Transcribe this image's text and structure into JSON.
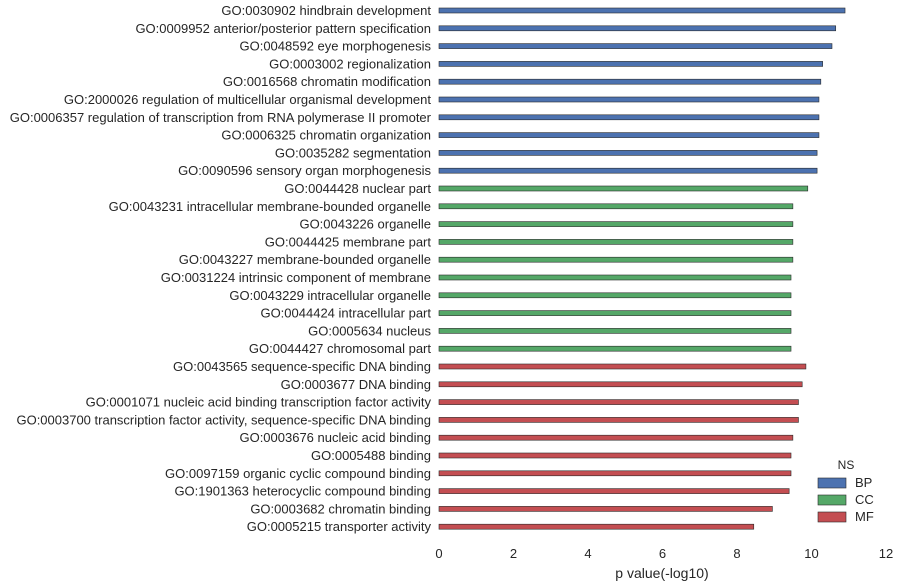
{
  "chart_data": {
    "type": "bar",
    "orientation": "horizontal",
    "xlabel": "p value(-log10)",
    "xlim": [
      0,
      12
    ],
    "x_ticks": [
      "0",
      "2",
      "4",
      "6",
      "8",
      "10",
      "12"
    ],
    "grid": false,
    "legend": {
      "title": "NS",
      "placement": "bottom-right",
      "entries": [
        {
          "name": "BP",
          "color": "#4c72b0"
        },
        {
          "name": "CC",
          "color": "#55a868"
        },
        {
          "name": "MF",
          "color": "#c44e52"
        }
      ]
    },
    "series": [
      {
        "name": "BP",
        "color": "#4c72b0",
        "points": [
          {
            "category": "GO:0030902 hindbrain development",
            "value": 10.9
          },
          {
            "category": "GO:0009952 anterior/posterior pattern specification",
            "value": 10.65
          },
          {
            "category": "GO:0048592 eye morphogenesis",
            "value": 10.55
          },
          {
            "category": "GO:0003002 regionalization",
            "value": 10.3
          },
          {
            "category": "GO:0016568 chromatin modification",
            "value": 10.25
          },
          {
            "category": "GO:2000026 regulation of multicellular organismal development",
            "value": 10.2
          },
          {
            "category": "GO:0006357 regulation of transcription from RNA polymerase II promoter",
            "value": 10.2
          },
          {
            "category": "GO:0006325 chromatin organization",
            "value": 10.2
          },
          {
            "category": "GO:0035282 segmentation",
            "value": 10.15
          },
          {
            "category": "GO:0090596 sensory organ morphogenesis",
            "value": 10.15
          }
        ]
      },
      {
        "name": "CC",
        "color": "#55a868",
        "points": [
          {
            "category": "GO:0044428 nuclear part",
            "value": 9.9
          },
          {
            "category": "GO:0043231 intracellular membrane-bounded organelle",
            "value": 9.5
          },
          {
            "category": "GO:0043226 organelle",
            "value": 9.5
          },
          {
            "category": "GO:0044425 membrane part",
            "value": 9.5
          },
          {
            "category": "GO:0043227 membrane-bounded organelle",
            "value": 9.5
          },
          {
            "category": "GO:0031224 intrinsic component of membrane",
            "value": 9.45
          },
          {
            "category": "GO:0043229 intracellular organelle",
            "value": 9.45
          },
          {
            "category": "GO:0044424 intracellular part",
            "value": 9.45
          },
          {
            "category": "GO:0005634 nucleus",
            "value": 9.45
          },
          {
            "category": "GO:0044427 chromosomal part",
            "value": 9.45
          }
        ]
      },
      {
        "name": "MF",
        "color": "#c44e52",
        "points": [
          {
            "category": "GO:0043565 sequence-specific DNA binding",
            "value": 9.85
          },
          {
            "category": "GO:0003677 DNA binding",
            "value": 9.75
          },
          {
            "category": "GO:0001071 nucleic acid binding transcription factor activity",
            "value": 9.65
          },
          {
            "category": "GO:0003700 transcription factor activity, sequence-specific DNA binding",
            "value": 9.65
          },
          {
            "category": "GO:0003676 nucleic acid binding",
            "value": 9.5
          },
          {
            "category": "GO:0005488 binding",
            "value": 9.45
          },
          {
            "category": "GO:0097159 organic cyclic compound binding",
            "value": 9.45
          },
          {
            "category": "GO:1901363 heterocyclic compound binding",
            "value": 9.4
          },
          {
            "category": "GO:0003682 chromatin binding",
            "value": 8.95
          },
          {
            "category": "GO:0005215 transporter activity",
            "value": 8.45
          }
        ]
      }
    ]
  }
}
